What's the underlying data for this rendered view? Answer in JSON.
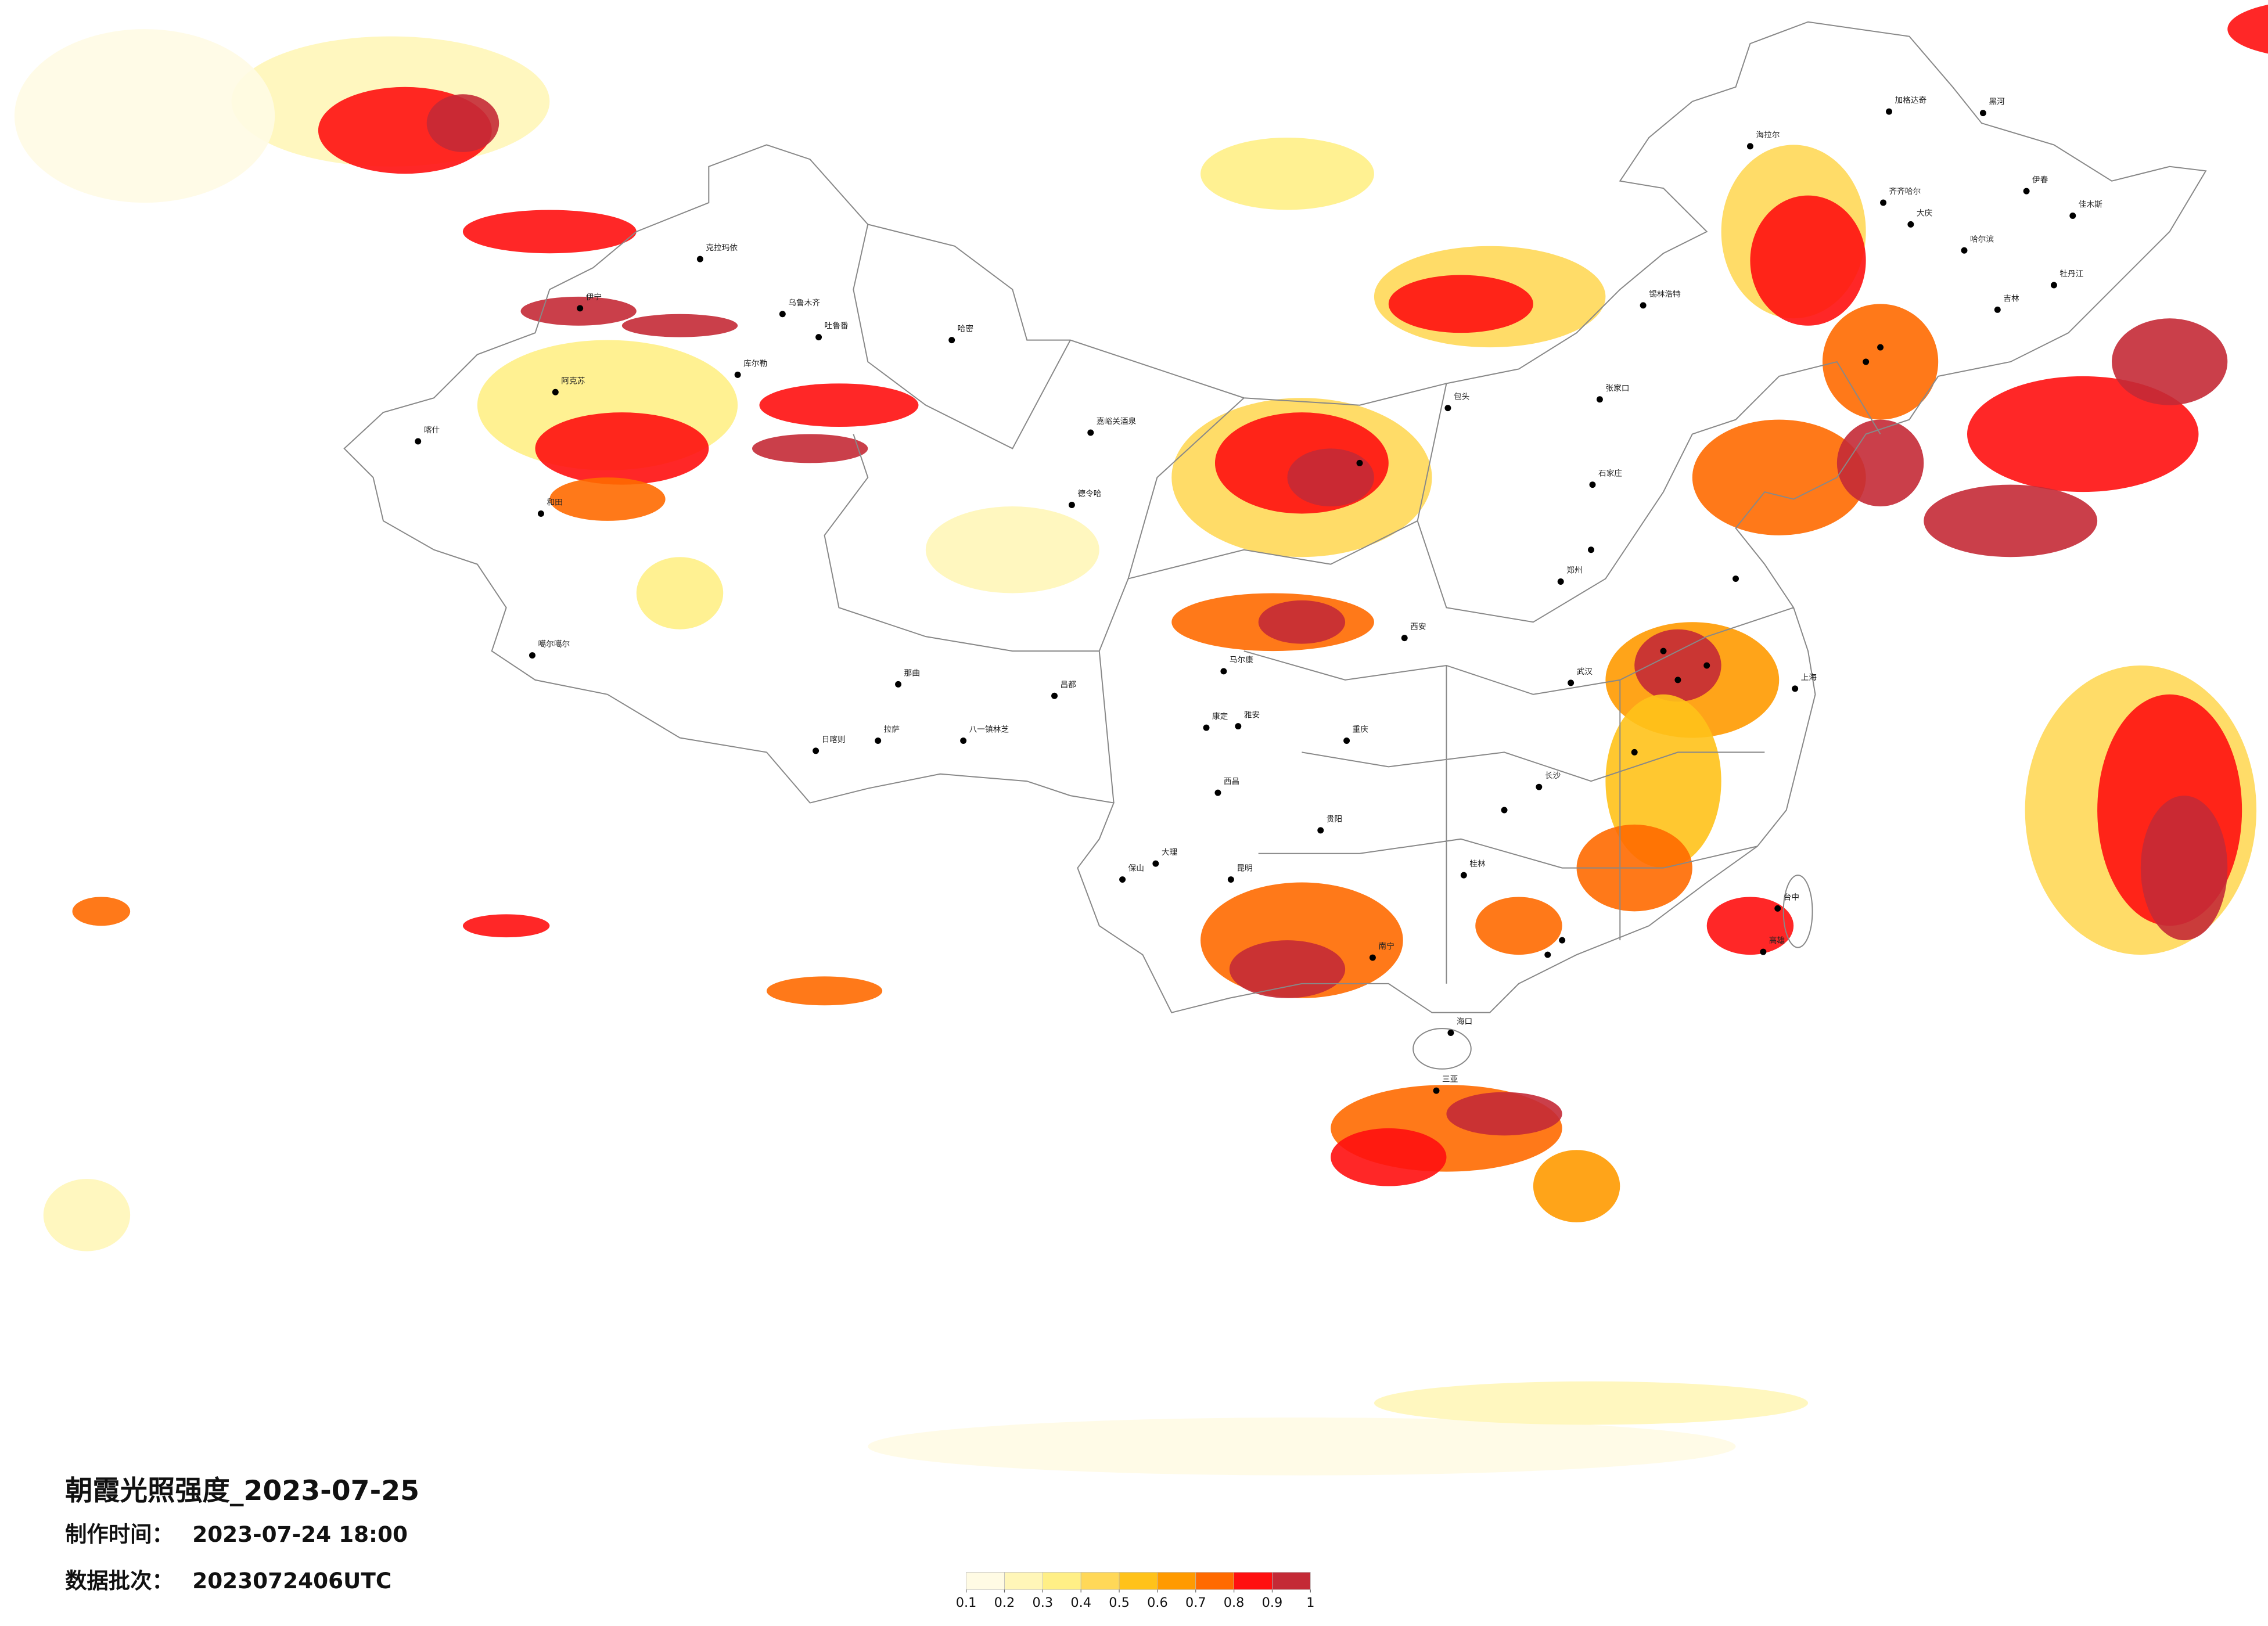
{
  "header": {
    "title": "朝霞光照强度_2023-07-25",
    "made_label": "制作时间：",
    "made_value": "2023-07-24 18:00",
    "batch_label": "数据批次：",
    "batch_value": "2023072406UTC"
  },
  "legend": {
    "colors": [
      "#fffbe4",
      "#fff6b8",
      "#ffef86",
      "#ffd858",
      "#ffc21a",
      "#ff9a00",
      "#ff6a00",
      "#ff1010",
      "#c42a36"
    ],
    "ticks": [
      0.1,
      0.2,
      0.3,
      0.4,
      0.5,
      0.6,
      0.7,
      0.8,
      0.9,
      1
    ]
  },
  "map": {
    "cities": [
      "克拉玛依",
      "乌鲁木齐",
      "吐鲁番",
      "哈密",
      "伊宁",
      "库尔勒",
      "阿克苏",
      "喀什",
      "和田",
      "嘉峪关酒泉",
      "德令哈",
      "噶尔噶尔",
      "那曲",
      "日喀则",
      "拉萨",
      "八一镇林芝",
      "昌都",
      "马尔康",
      "康定",
      "雅安",
      "西昌",
      "大理",
      "保山",
      "昆明",
      "贵阳",
      "重庆",
      "南宁",
      "桂林",
      "长沙",
      "武汉",
      "郑州",
      "西安",
      "石家庄",
      "张家口",
      "包头",
      "锡林浩特",
      "海拉尔",
      "加格达奇",
      "黑河",
      "齐齐哈尔",
      "大庆",
      "哈尔滨",
      "伊春",
      "佳木斯",
      "牡丹江",
      "吉林",
      "上海",
      "台中",
      "高雄",
      "海口",
      "三亚"
    ]
  }
}
